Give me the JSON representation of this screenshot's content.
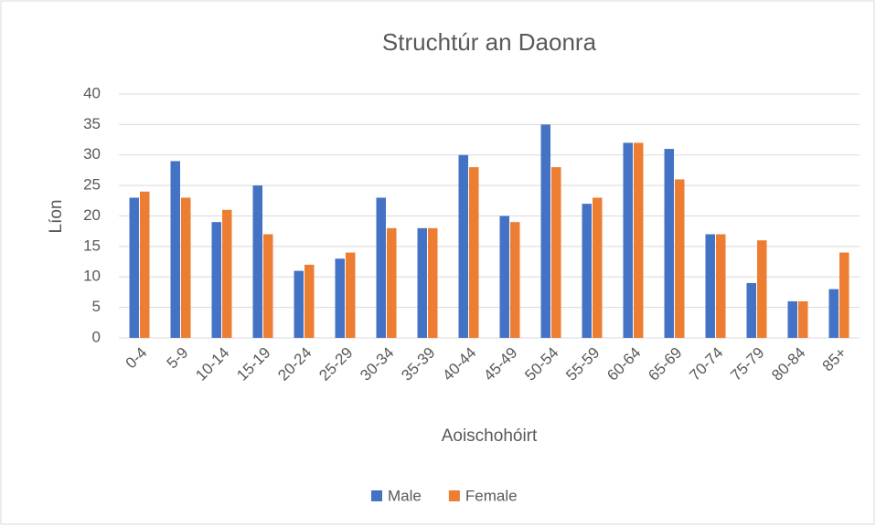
{
  "chart_data": {
    "type": "bar",
    "title": "Struchtúr an Daonra",
    "x_label": "Aoischohóirt",
    "y_label": "Líon",
    "categories": [
      "0-4",
      "5-9",
      "10-14",
      "15-19",
      "20-24",
      "25-29",
      "30-34",
      "35-39",
      "40-44",
      "45-49",
      "50-54",
      "55-59",
      "60-64",
      "65-69",
      "70-74",
      "75-79",
      "80-84",
      "85+"
    ],
    "series": [
      {
        "name": "Male",
        "color": "#4472c4",
        "values": [
          23,
          29,
          19,
          25,
          11,
          13,
          23,
          18,
          30,
          20,
          35,
          22,
          32,
          31,
          17,
          9,
          6,
          8
        ]
      },
      {
        "name": "Female",
        "color": "#ed7d31",
        "values": [
          24,
          23,
          21,
          17,
          12,
          14,
          18,
          18,
          28,
          19,
          28,
          23,
          32,
          26,
          17,
          16,
          6,
          14
        ]
      }
    ],
    "ylim": [
      0,
      40
    ],
    "yticks": [
      0,
      5,
      10,
      15,
      20,
      25,
      30,
      35,
      40
    ],
    "grid": true,
    "legend": "bottom"
  }
}
